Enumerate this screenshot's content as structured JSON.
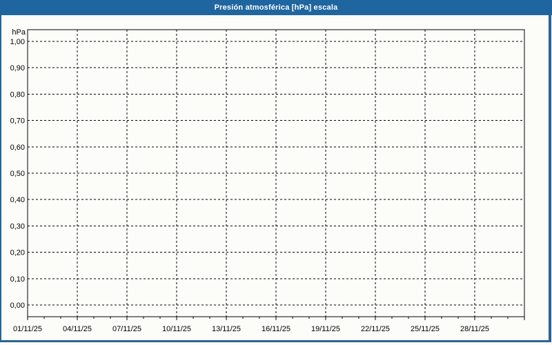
{
  "window": {
    "title": "Presión atmosférica [hPa] escala"
  },
  "colors": {
    "title_bar_bg": "#1F66A0",
    "title_text": "#FFFFFF",
    "frame_border": "#2A6496",
    "page_bg": "#FCFCF9",
    "grid": "#000000",
    "axis_text": "#000000"
  },
  "chart_data": {
    "type": "line",
    "title": "Presión atmosférica [hPa] escala",
    "ylabel": "hPa",
    "xlabel": "",
    "ylim": [
      0,
      1
    ],
    "xlim_days": [
      0,
      30
    ],
    "x_major_every": 3,
    "x_minor_every": 1,
    "grid": "dashed",
    "legend": "none",
    "series": [],
    "y_ticks": [
      {
        "value": 1.0,
        "label": "1,00"
      },
      {
        "value": 0.9,
        "label": "0,90"
      },
      {
        "value": 0.8,
        "label": "0,80"
      },
      {
        "value": 0.7,
        "label": "0,70"
      },
      {
        "value": 0.6,
        "label": "0,60"
      },
      {
        "value": 0.5,
        "label": "0,50"
      },
      {
        "value": 0.4,
        "label": "0,40"
      },
      {
        "value": 0.3,
        "label": "0,30"
      },
      {
        "value": 0.2,
        "label": "0,20"
      },
      {
        "value": 0.1,
        "label": "0,10"
      },
      {
        "value": 0.0,
        "label": "0,00"
      }
    ],
    "x_ticks": [
      {
        "day": 0,
        "label": "01/11/25"
      },
      {
        "day": 3,
        "label": "04/11/25"
      },
      {
        "day": 6,
        "label": "07/11/25"
      },
      {
        "day": 9,
        "label": "10/11/25"
      },
      {
        "day": 12,
        "label": "13/11/25"
      },
      {
        "day": 15,
        "label": "16/11/25"
      },
      {
        "day": 18,
        "label": "19/11/25"
      },
      {
        "day": 21,
        "label": "22/11/25"
      },
      {
        "day": 24,
        "label": "25/11/25"
      },
      {
        "day": 27,
        "label": "28/11/25"
      }
    ]
  }
}
